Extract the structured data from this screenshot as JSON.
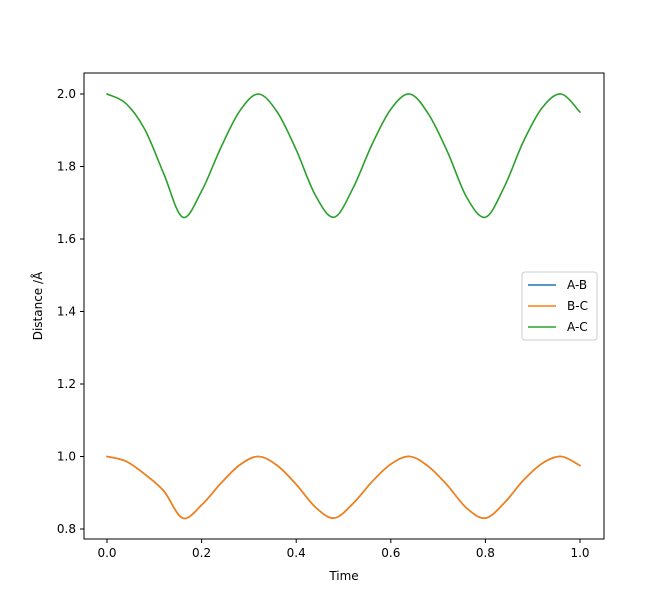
{
  "chart_data": {
    "type": "line",
    "title": "",
    "xlabel": "Time",
    "ylabel": "Distance /Å",
    "xlim": [
      -0.05,
      1.05
    ],
    "ylim": [
      0.8,
      2.0
    ],
    "x_ticks": [
      0.0,
      0.2,
      0.4,
      0.6,
      0.8,
      1.0
    ],
    "x_tick_labels": [
      "0.0",
      "0.2",
      "0.4",
      "0.6",
      "0.8",
      "1.0"
    ],
    "y_ticks": [
      0.8,
      1.0,
      1.2,
      1.4,
      1.6,
      1.8,
      2.0
    ],
    "y_tick_labels": [
      "0.8",
      "1.0",
      "1.2",
      "1.4",
      "1.6",
      "1.8",
      "2.0"
    ],
    "grid": false,
    "legend_position": "center-right",
    "x": [
      0.0,
      0.04,
      0.08,
      0.12,
      0.16,
      0.2,
      0.24,
      0.28,
      0.32,
      0.36,
      0.4,
      0.44,
      0.48,
      0.52,
      0.56,
      0.6,
      0.64,
      0.68,
      0.72,
      0.76,
      0.8,
      0.84,
      0.88,
      0.92,
      0.96,
      1.0
    ],
    "series": [
      {
        "name": "A-B",
        "color": "#1f77b4",
        "values": [
          1.0,
          0.987,
          0.951,
          0.905,
          0.83,
          0.866,
          0.925,
          0.976,
          1.0,
          0.975,
          0.923,
          0.861,
          0.83,
          0.87,
          0.93,
          0.979,
          1.0,
          0.972,
          0.92,
          0.858,
          0.83,
          0.872,
          0.934,
          0.981,
          1.0,
          0.975
        ]
      },
      {
        "name": "B-C",
        "color": "#ff7f0e",
        "values": [
          1.0,
          0.987,
          0.951,
          0.905,
          0.83,
          0.866,
          0.925,
          0.976,
          1.0,
          0.975,
          0.923,
          0.861,
          0.83,
          0.87,
          0.93,
          0.979,
          1.0,
          0.972,
          0.92,
          0.858,
          0.83,
          0.872,
          0.934,
          0.981,
          1.0,
          0.975
        ]
      },
      {
        "name": "A-C",
        "color": "#2ca02c",
        "values": [
          2.0,
          1.974,
          1.902,
          1.78,
          1.66,
          1.732,
          1.85,
          1.952,
          2.0,
          1.95,
          1.846,
          1.722,
          1.66,
          1.74,
          1.86,
          1.958,
          2.0,
          1.944,
          1.84,
          1.716,
          1.66,
          1.744,
          1.868,
          1.962,
          2.0,
          1.95
        ]
      }
    ]
  }
}
